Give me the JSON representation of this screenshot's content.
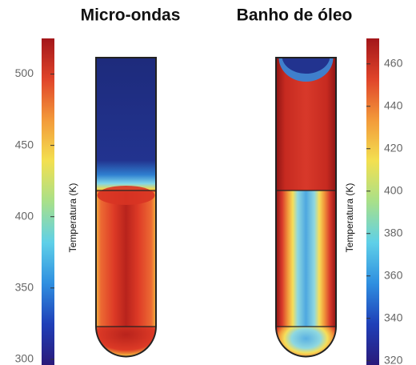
{
  "chart_data": [
    {
      "type": "heatmap",
      "title": "Micro-ondas",
      "colormap": "jet",
      "colorbar": {
        "label": "Temperatura (K)",
        "lim": [
          296,
          525
        ],
        "ticks": [
          300,
          350,
          400,
          450,
          500
        ]
      }
    },
    {
      "type": "heatmap",
      "title": "Banho de óleo",
      "colormap": "jet",
      "colorbar": {
        "label": "Temperatura (K)",
        "lim": [
          318,
          472
        ],
        "ticks": [
          320,
          340,
          360,
          380,
          400,
          420,
          440,
          460
        ]
      }
    }
  ]
}
